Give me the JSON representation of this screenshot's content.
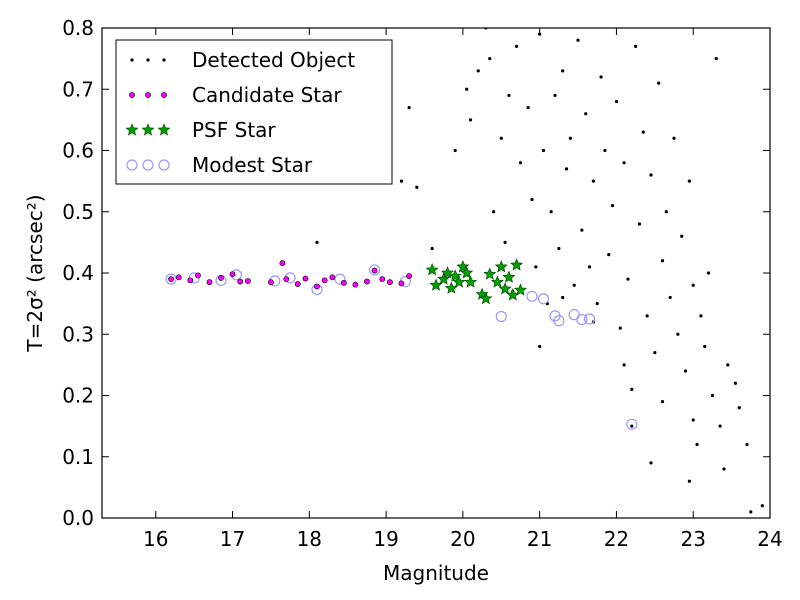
{
  "chart_data": {
    "type": "scatter",
    "title": "",
    "xlabel": "Magnitude",
    "ylabel": "T=2σ² (arcsec²)",
    "xlim": [
      15.3,
      24.0
    ],
    "ylim": [
      0.0,
      0.8
    ],
    "xticks": [
      "16",
      "17",
      "18",
      "19",
      "20",
      "21",
      "22",
      "23",
      "24"
    ],
    "yticks": [
      "0.0",
      "0.1",
      "0.2",
      "0.3",
      "0.4",
      "0.5",
      "0.6",
      "0.7",
      "0.8"
    ],
    "grid": false,
    "legend_placement": "top-left",
    "series": [
      {
        "name": "Detected Object",
        "marker": "dot",
        "color": "#000000",
        "points": [
          [
            19.2,
            0.55
          ],
          [
            19.4,
            0.54
          ],
          [
            19.3,
            0.67
          ],
          [
            18.1,
            0.45
          ],
          [
            19.6,
            0.44
          ],
          [
            19.9,
            0.6
          ],
          [
            20.05,
            0.7
          ],
          [
            20.1,
            0.65
          ],
          [
            20.2,
            0.73
          ],
          [
            20.3,
            0.8
          ],
          [
            20.35,
            0.75
          ],
          [
            20.5,
            0.62
          ],
          [
            20.6,
            0.69
          ],
          [
            20.7,
            0.77
          ],
          [
            20.4,
            0.5
          ],
          [
            20.55,
            0.45
          ],
          [
            20.75,
            0.58
          ],
          [
            20.85,
            0.67
          ],
          [
            20.9,
            0.52
          ],
          [
            20.95,
            0.41
          ],
          [
            21.0,
            0.79
          ],
          [
            21.05,
            0.6
          ],
          [
            21.1,
            0.35
          ],
          [
            21.15,
            0.5
          ],
          [
            21.2,
            0.69
          ],
          [
            21.25,
            0.44
          ],
          [
            21.3,
            0.73
          ],
          [
            21.35,
            0.57
          ],
          [
            21.4,
            0.62
          ],
          [
            21.45,
            0.38
          ],
          [
            21.5,
            0.78
          ],
          [
            21.55,
            0.47
          ],
          [
            21.6,
            0.66
          ],
          [
            21.65,
            0.41
          ],
          [
            21.7,
            0.55
          ],
          [
            21.75,
            0.35
          ],
          [
            21.8,
            0.72
          ],
          [
            21.85,
            0.6
          ],
          [
            21.9,
            0.43
          ],
          [
            21.95,
            0.51
          ],
          [
            22.0,
            0.68
          ],
          [
            22.05,
            0.31
          ],
          [
            22.1,
            0.58
          ],
          [
            22.15,
            0.39
          ],
          [
            22.2,
            0.21
          ],
          [
            22.25,
            0.77
          ],
          [
            22.3,
            0.48
          ],
          [
            22.35,
            0.63
          ],
          [
            22.4,
            0.33
          ],
          [
            22.45,
            0.56
          ],
          [
            22.5,
            0.27
          ],
          [
            22.55,
            0.71
          ],
          [
            22.6,
            0.42
          ],
          [
            22.65,
            0.5
          ],
          [
            22.7,
            0.36
          ],
          [
            22.75,
            0.62
          ],
          [
            22.8,
            0.3
          ],
          [
            22.85,
            0.46
          ],
          [
            22.9,
            0.24
          ],
          [
            22.95,
            0.55
          ],
          [
            23.0,
            0.38
          ],
          [
            23.05,
            0.12
          ],
          [
            23.1,
            0.33
          ],
          [
            23.15,
            0.28
          ],
          [
            23.2,
            0.4
          ],
          [
            23.25,
            0.2
          ],
          [
            23.3,
            0.75
          ],
          [
            23.35,
            0.15
          ],
          [
            23.4,
            0.08
          ],
          [
            23.45,
            0.25
          ],
          [
            23.55,
            0.22
          ],
          [
            23.6,
            0.18
          ],
          [
            23.7,
            0.12
          ],
          [
            23.75,
            0.01
          ],
          [
            23.9,
            0.02
          ],
          [
            22.2,
            0.15
          ],
          [
            22.45,
            0.09
          ],
          [
            22.95,
            0.06
          ],
          [
            21.0,
            0.28
          ],
          [
            21.3,
            0.36
          ],
          [
            20.65,
            0.37
          ],
          [
            21.7,
            0.32
          ],
          [
            22.1,
            0.25
          ],
          [
            22.6,
            0.19
          ],
          [
            23.0,
            0.16
          ]
        ]
      },
      {
        "name": "Candidate Star",
        "marker": "circle-small",
        "color": "#ff00ff",
        "points": [
          [
            16.2,
            0.39
          ],
          [
            16.3,
            0.393
          ],
          [
            16.45,
            0.388
          ],
          [
            16.55,
            0.396
          ],
          [
            16.7,
            0.385
          ],
          [
            16.85,
            0.392
          ],
          [
            17.0,
            0.398
          ],
          [
            17.1,
            0.386
          ],
          [
            17.2,
            0.387
          ],
          [
            17.5,
            0.385
          ],
          [
            17.65,
            0.416
          ],
          [
            17.7,
            0.39
          ],
          [
            17.85,
            0.382
          ],
          [
            17.95,
            0.391
          ],
          [
            18.1,
            0.378
          ],
          [
            18.2,
            0.388
          ],
          [
            18.3,
            0.393
          ],
          [
            18.45,
            0.384
          ],
          [
            18.6,
            0.381
          ],
          [
            18.75,
            0.386
          ],
          [
            18.85,
            0.404
          ],
          [
            18.95,
            0.39
          ],
          [
            19.05,
            0.385
          ],
          [
            19.2,
            0.383
          ],
          [
            19.3,
            0.395
          ]
        ]
      },
      {
        "name": "PSF Star",
        "marker": "star",
        "color": "#00a000",
        "points": [
          [
            19.6,
            0.405
          ],
          [
            19.65,
            0.38
          ],
          [
            19.75,
            0.39
          ],
          [
            19.8,
            0.4
          ],
          [
            19.85,
            0.375
          ],
          [
            19.9,
            0.395
          ],
          [
            19.95,
            0.385
          ],
          [
            20.0,
            0.41
          ],
          [
            20.05,
            0.4
          ],
          [
            20.1,
            0.385
          ],
          [
            20.25,
            0.365
          ],
          [
            20.3,
            0.358
          ],
          [
            20.35,
            0.398
          ],
          [
            20.45,
            0.385
          ],
          [
            20.5,
            0.41
          ],
          [
            20.55,
            0.374
          ],
          [
            20.6,
            0.393
          ],
          [
            20.65,
            0.364
          ],
          [
            20.7,
            0.413
          ],
          [
            20.75,
            0.372
          ]
        ]
      },
      {
        "name": "Modest Star",
        "marker": "open-circle",
        "color": "#9999ff",
        "points": [
          [
            16.2,
            0.39
          ],
          [
            16.5,
            0.392
          ],
          [
            16.85,
            0.388
          ],
          [
            17.05,
            0.397
          ],
          [
            17.55,
            0.387
          ],
          [
            17.75,
            0.392
          ],
          [
            18.1,
            0.373
          ],
          [
            18.4,
            0.39
          ],
          [
            18.85,
            0.405
          ],
          [
            19.25,
            0.386
          ],
          [
            20.5,
            0.329
          ],
          [
            20.9,
            0.362
          ],
          [
            21.05,
            0.358
          ],
          [
            21.2,
            0.33
          ],
          [
            21.25,
            0.322
          ],
          [
            21.45,
            0.332
          ],
          [
            21.55,
            0.324
          ],
          [
            21.65,
            0.325
          ],
          [
            22.2,
            0.153
          ]
        ]
      }
    ]
  }
}
